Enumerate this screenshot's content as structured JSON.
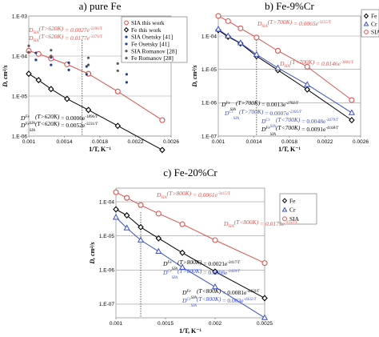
{
  "chart_data": [
    {
      "type": "scatter",
      "title": "a) pure Fe",
      "xlabel": "1/T, K⁻¹",
      "ylabel": "D, cm²/s",
      "xlim": [
        0.001,
        0.0026
      ],
      "ylim_log10": [
        -6,
        -3
      ],
      "xticks": [
        "0.001",
        "0.0014",
        "0.0018",
        "0.0022",
        "0.0026"
      ],
      "yticks": [
        "1.E-06",
        "1.E-05",
        "1.E-04",
        "1.E-03"
      ],
      "grid": "horizontal",
      "legend_position": "top-right",
      "vline_x": 0.0016,
      "series": [
        {
          "name": "SIA this work",
          "marker": "circle",
          "color": "#d9534f",
          "x": [
            0.001,
            0.00111,
            0.00125,
            0.00143,
            0.00167,
            0.002,
            0.0025
          ],
          "y": [
            0.000135,
            0.000113,
            8.7e-05,
            6.2e-05,
            3.6e-05,
            1.3e-05,
            2.5e-06
          ]
        },
        {
          "name": "Fe this work",
          "marker": "diamond",
          "color": "#000000",
          "x": [
            0.001,
            0.00111,
            0.00125,
            0.00143,
            0.00167,
            0.002,
            0.0025
          ],
          "y": [
            3.6e-05,
            2.5e-05,
            1.5e-05,
            8.5e-06,
            4.5e-06,
            1.8e-06,
            4.5e-07
          ]
        },
        {
          "name": "SIA Osetsky [41]",
          "marker": "dot",
          "color": "#1f3f8f",
          "x": [
            0.00108,
            0.00125,
            0.00145,
            0.00165,
            0.0021
          ],
          "y": [
            0.00012,
            9.2e-05,
            6.8e-05,
            5.5e-05,
            3.5e-05
          ]
        },
        {
          "name": "Fe Osetsky [41]",
          "marker": "dot",
          "color": "#1f3f8f",
          "x": [
            0.00108,
            0.00125,
            0.00145,
            0.00165,
            0.0021
          ],
          "y": [
            8e-05,
            6e-05,
            4.5e-05,
            3.5e-05,
            2.2e-05
          ]
        },
        {
          "name": "SIA Romanov [28]",
          "marker": "dot",
          "color": "#5a5a5a",
          "x": [
            0.001,
            0.00125,
            0.00167,
            0.002
          ],
          "y": [
            0.00018,
            0.00014,
            9e-05,
            6.5e-05
          ]
        },
        {
          "name": "Fe Romanov [28]",
          "marker": "dot",
          "color": "#5a5a5a",
          "x": [
            0.001,
            0.00125,
            0.00167,
            0.002
          ],
          "y": [
            0.000125,
            0.0001,
            6e-05,
            4.3e-05
          ]
        }
      ],
      "annotations": [
        {
          "base": "D",
          "sub": "SIA",
          "cond": "(T>620K)",
          "eq": " = 0.0027e",
          "exp": "-2206/T",
          "color": "#d9534f"
        },
        {
          "base": "D",
          "sub": "SIA",
          "cond": "(T<620K)",
          "eq": " = 0.0177e",
          "exp": "-3379/T",
          "color": "#d9534f"
        },
        {
          "base": "D",
          "sup": "Fe",
          "sub": "SIA",
          "cond": "(T>620K)",
          "eq": " = 0.0006e",
          "exp": "-1896/T",
          "color": "#000000"
        },
        {
          "base": "D",
          "sup": "Fe",
          "sub": "SIA",
          "cond": "(T<620K)",
          "eq": " = 0.0052e",
          "exp": "-3231/T",
          "color": "#000000"
        }
      ]
    },
    {
      "type": "scatter",
      "title": "b) Fe-9%Cr",
      "xlabel": "1/T, K⁻¹",
      "ylabel": "D, cm²/s",
      "xlim": [
        0.001,
        0.0026
      ],
      "ylim_log10": [
        -7,
        -3.4
      ],
      "xticks": [
        "0.001",
        "0.0014",
        "0.0018",
        "0.0022",
        "0.0026"
      ],
      "yticks": [
        "1.E-07",
        "1.E-06",
        "1.E-05",
        "1.E-04"
      ],
      "grid": "horizontal",
      "legend_position": "top-right",
      "vline_x": 0.00143,
      "series": [
        {
          "name": "Fe",
          "marker": "diamond",
          "color": "#000000",
          "x": [
            0.001,
            0.00111,
            0.00125,
            0.00143,
            0.00167,
            0.002,
            0.0025
          ],
          "y": [
            0.00015,
            9.5e-05,
            6e-05,
            2.5e-05,
            9.5e-06,
            2.5e-06,
            3e-07
          ]
        },
        {
          "name": "Cr",
          "marker": "triangle",
          "color": "#3b4fc7",
          "x": [
            0.001,
            0.00111,
            0.00125,
            0.00143,
            0.00167,
            0.002,
            0.0025
          ],
          "y": [
            0.00016,
            0.0001,
            6.2e-05,
            2.8e-05,
            1.1e-05,
            3.5e-06,
            5e-07
          ]
        },
        {
          "name": "SIA",
          "marker": "circle",
          "color": "#d9534f",
          "x": [
            0.001,
            0.00111,
            0.00125,
            0.00143,
            0.00167,
            0.002,
            0.0025
          ],
          "y": [
            0.0004,
            0.00028,
            0.00017,
            9e-05,
            3.6e-05,
            1.2e-05,
            1.2e-06
          ]
        }
      ],
      "annotations": [
        {
          "base": "D",
          "sub": "SIA",
          "cond": "(T>700K)",
          "eq": " = 0.0065e",
          "exp": "-3255/T",
          "color": "#d9534f"
        },
        {
          "base": "D",
          "sub": "SIA",
          "cond": "(T<700K)",
          "eq": " = 0.0146e",
          "exp": "-3881/T",
          "color": "#d9534f"
        },
        {
          "base": "D",
          "sup": "Fe",
          "sub": "SIA",
          "cond": "(T>700K)",
          "eq": " = 0.0013e",
          "exp": "-2782/T",
          "color": "#000000"
        },
        {
          "base": "D",
          "sup": "Cr",
          "sub": "SIA",
          "cond": "(T>700K)",
          "eq": " = 0.0007e",
          "exp": "-2305/T",
          "color": "#3b4fc7"
        },
        {
          "base": "D",
          "sup": "Cr",
          "sub": "SIA",
          "cond": "(T<700K)",
          "eq": " = 0.0048e",
          "exp": "-3679/T",
          "color": "#3b4fc7"
        },
        {
          "base": "D",
          "sup": "Fe",
          "sub": "SIA",
          "cond": "(T<700K)",
          "eq": " = 0.0091e",
          "exp": "-4168/T",
          "color": "#000000"
        }
      ]
    },
    {
      "type": "scatter",
      "title": "c) Fe-20%Cr",
      "xlabel": "1/T, K⁻¹",
      "ylabel": "D, cm²/s",
      "xlim": [
        0.001,
        0.0025
      ],
      "ylim_log10": [
        -7.4,
        -3.6
      ],
      "xticks": [
        "0.001",
        "0.0015",
        "0.002",
        "0.0025"
      ],
      "yticks": [
        "1.E-07",
        "1.E-06",
        "1.E-05",
        "1.E-04"
      ],
      "grid": "horizontal",
      "legend_position": "top-right",
      "vline_x": 0.00125,
      "series": [
        {
          "name": "Fe",
          "marker": "diamond",
          "color": "#000000",
          "x": [
            0.001,
            0.00111,
            0.00125,
            0.00143,
            0.00167,
            0.002,
            0.0025
          ],
          "y": [
            6e-05,
            4e-05,
            1.8e-05,
            8.5e-06,
            3.2e-06,
            9e-07,
            1.5e-07
          ]
        },
        {
          "name": "Cr",
          "marker": "triangle",
          "color": "#3b4fc7",
          "x": [
            0.001,
            0.00111,
            0.00125,
            0.00143,
            0.00167,
            0.002,
            0.0025
          ],
          "y": [
            3.5e-05,
            1.7e-05,
            7.5e-06,
            3.5e-06,
            1.2e-06,
            3.2e-07,
            4e-08
          ]
        },
        {
          "name": "SIA",
          "marker": "circle",
          "color": "#d9534f",
          "x": [
            0.001,
            0.00111,
            0.00125,
            0.00143,
            0.00167,
            0.002,
            0.0025
          ],
          "y": [
            0.00019,
            0.00013,
            8e-05,
            4.5e-05,
            2.2e-05,
            7.5e-06,
            1.6e-06
          ]
        }
      ],
      "annotations": [
        {
          "base": "D",
          "sub": "SIA",
          "cond": "(T>800K)",
          "eq": " = 0.0061e",
          "exp": "-3415/T",
          "color": "#d9534f"
        },
        {
          "base": "D",
          "sub": "SIA",
          "cond": "(T<800K)",
          "eq": " = 0.0173e",
          "exp": "-4352/T",
          "color": "#d9534f"
        },
        {
          "base": "D",
          "sup": "Fe",
          "sub": "SIA",
          "cond": "(T>800K)",
          "eq": " = 0.0021e",
          "exp": "-3417/T",
          "color": "#000000"
        },
        {
          "base": "D",
          "sup": "Cr",
          "sub": "SIA",
          "cond": "(T>800K)",
          "eq": " = 0.0008e",
          "exp": "-3420/T",
          "color": "#3b4fc7"
        },
        {
          "base": "D",
          "sup": "Fe",
          "sub": "SIA",
          "cond": "(T<800K)",
          "eq": " = 0.0081e",
          "exp": "-4450/T",
          "color": "#000000"
        },
        {
          "base": "D",
          "sup": "Cr",
          "sub": "SIA",
          "cond": "(T<800K)",
          "eq": " = 0.003e",
          "exp": "-4432/T",
          "color": "#3b4fc7"
        }
      ]
    }
  ]
}
